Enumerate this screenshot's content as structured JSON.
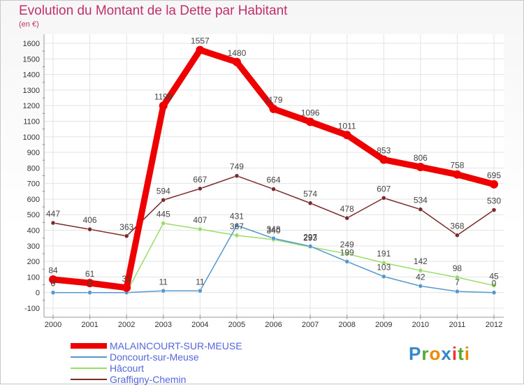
{
  "chart_data": {
    "type": "line",
    "title": "Evolution du Montant de la Dette par Habitant",
    "subtitle": "(en €)",
    "x": [
      "2000",
      "2001",
      "2002",
      "2003",
      "2004",
      "2005",
      "2006",
      "2007",
      "2008",
      "2009",
      "2010",
      "2011",
      "2012"
    ],
    "ylim": [
      -100,
      1600
    ],
    "yticks": [
      -100,
      0,
      100,
      200,
      300,
      400,
      500,
      600,
      700,
      800,
      900,
      1000,
      1100,
      1200,
      1300,
      1400,
      1500,
      1600
    ],
    "grid": true,
    "legend_position": "bottom-left",
    "series": [
      {
        "name": "Graffigny-Chemin",
        "color": "#7a2a2a",
        "values": [
          447,
          406,
          363,
          594,
          667,
          749,
          664,
          574,
          478,
          607,
          534,
          368,
          530
        ],
        "labels": [
          "447",
          "406",
          "363",
          "594",
          "667",
          "749",
          "664",
          "574",
          "478",
          "607",
          "534",
          "368",
          "530"
        ]
      },
      {
        "name": "Hâcourt",
        "color": "#99dd66",
        "values": [
          0,
          0,
          0,
          445,
          407,
          367,
          340,
          293,
          249,
          191,
          142,
          98,
          45
        ],
        "labels": [
          "0",
          "0",
          "",
          "445",
          "407",
          "367",
          "340",
          "293",
          "249",
          "191",
          "142",
          "98",
          "45"
        ]
      },
      {
        "name": "Doncourt-sur-Meuse",
        "color": "#5599cc",
        "values": [
          0,
          0,
          0,
          11,
          11,
          431,
          348,
          297,
          199,
          103,
          42,
          7,
          0
        ],
        "labels": [
          "0",
          "0",
          "",
          "11",
          "11",
          "431",
          "348",
          "297",
          "199",
          "103",
          "42",
          "7",
          "0"
        ]
      },
      {
        "name": "MALAINCOURT-SUR-MEUSE",
        "color": "#ee0000",
        "values": [
          84,
          61,
          31,
          1199,
          1557,
          1480,
          1179,
          1096,
          1011,
          853,
          806,
          758,
          695
        ],
        "labels": [
          "84",
          "61",
          "31",
          "1199",
          "1557",
          "1480",
          "1179",
          "1096",
          "1011",
          "853",
          "806",
          "758",
          "695"
        ]
      }
    ],
    "legend_order": [
      "MALAINCOURT-SUR-MEUSE",
      "Doncourt-sur-Meuse",
      "Hâcourt",
      "Graffigny-Chemin"
    ]
  },
  "legend": [
    {
      "label": "MALAINCOURT-SUR-MEUSE",
      "color": "#ee0000",
      "text_color": "#5566dd"
    },
    {
      "label": "Doncourt-sur-Meuse",
      "color": "#5599cc",
      "text_color": "#5566dd"
    },
    {
      "label": "Hâcourt",
      "color": "#99dd66",
      "text_color": "#5566dd"
    },
    {
      "label": "Graffigny-Chemin",
      "color": "#7a2a2a",
      "text_color": "#5566dd"
    }
  ],
  "brand": {
    "letters": [
      "P",
      "r",
      "o",
      "x",
      "i",
      "t",
      "i"
    ],
    "colors": [
      "#3388cc",
      "#55aa33",
      "#ee8800",
      "#3388cc",
      "#ee3333",
      "#55aa33",
      "#ee8800"
    ]
  }
}
